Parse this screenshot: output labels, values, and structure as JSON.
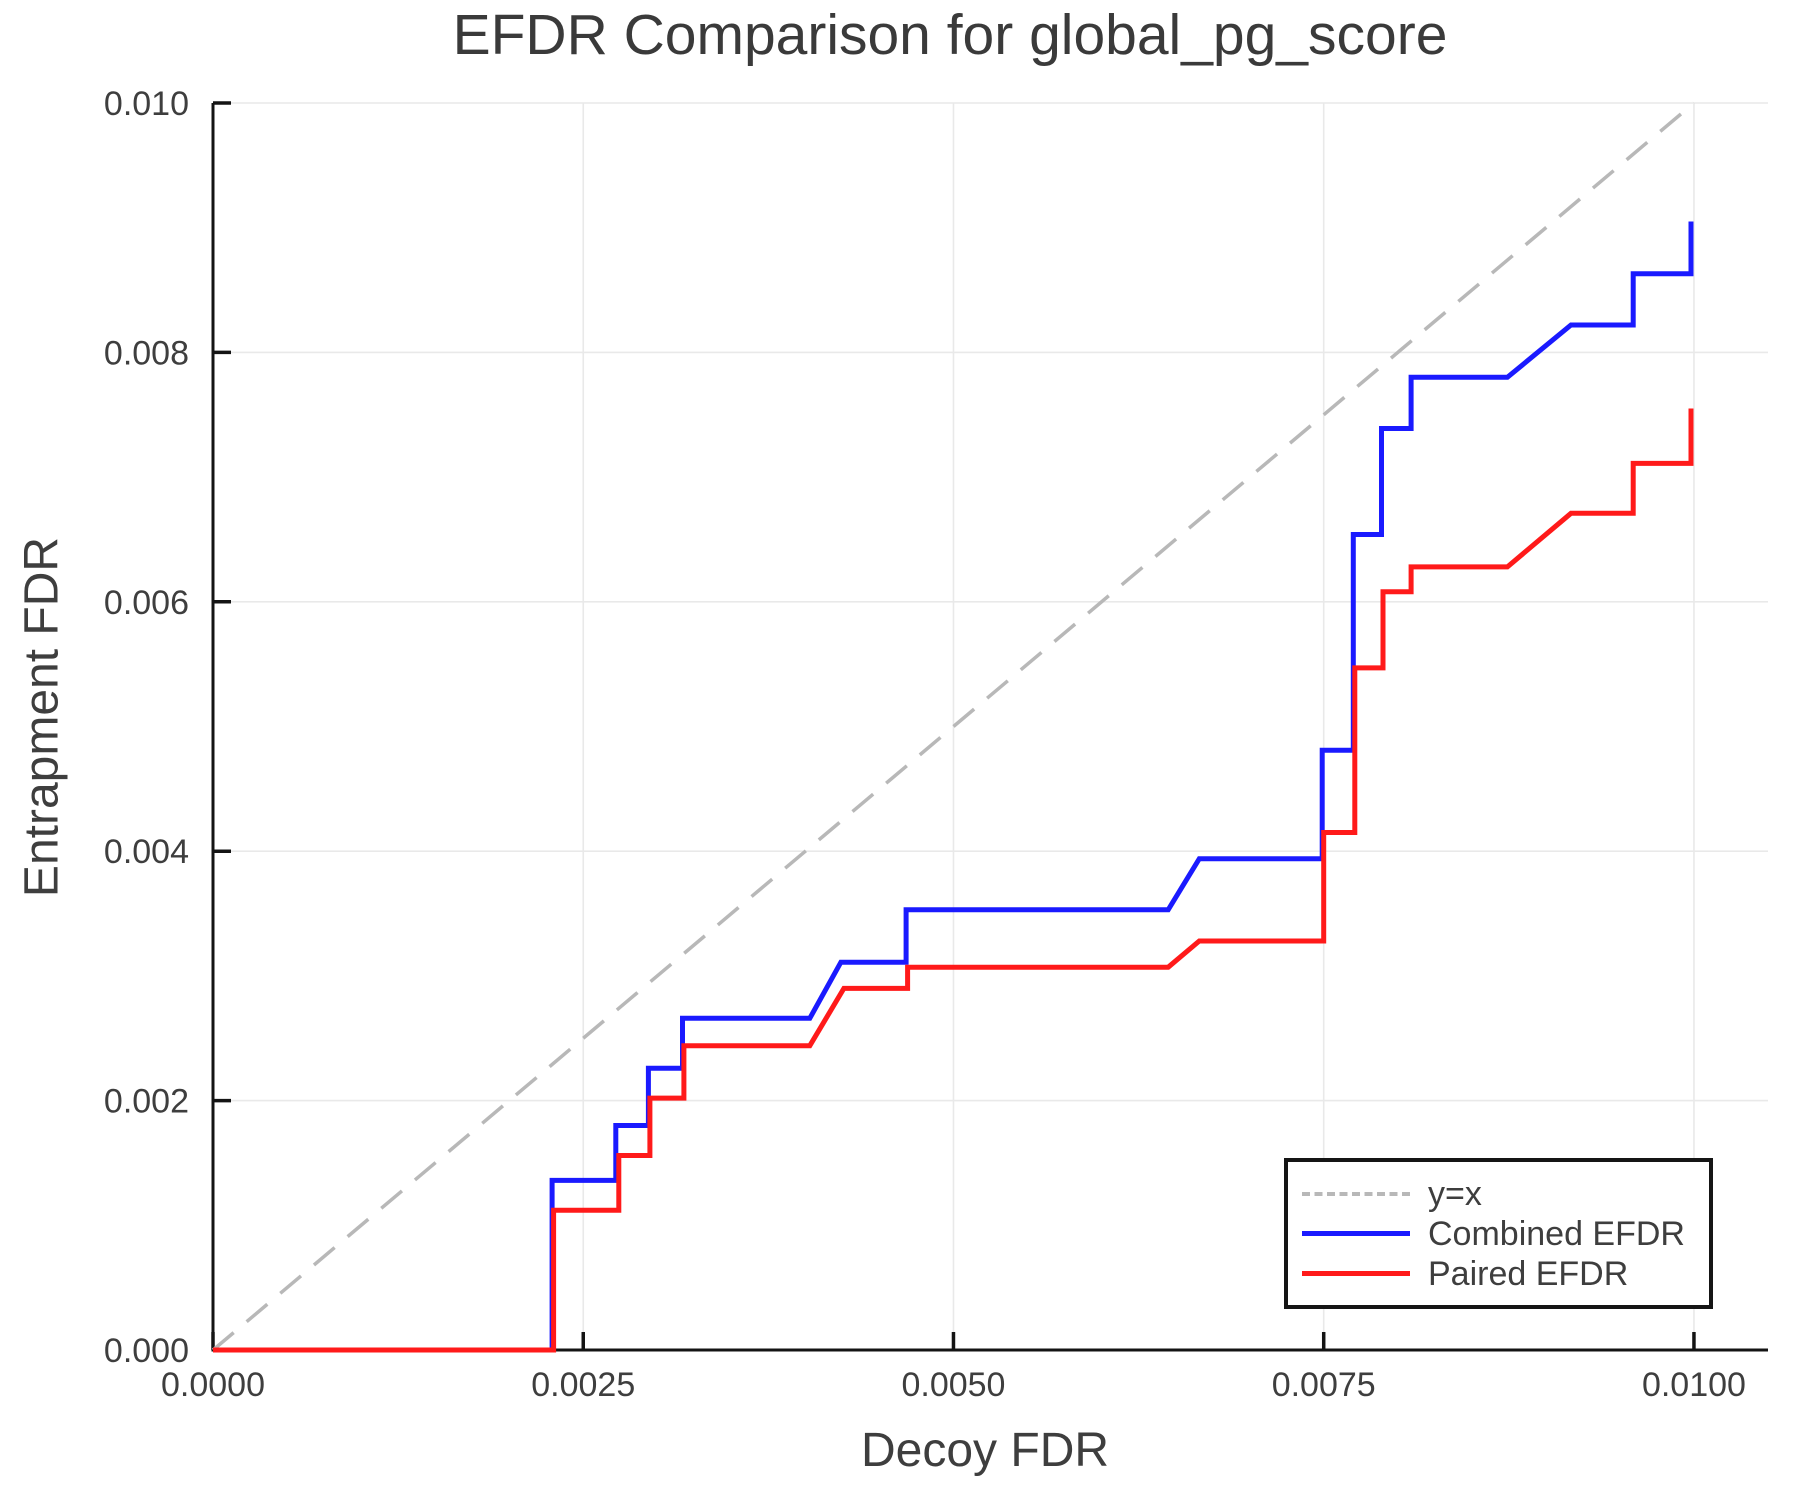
{
  "chart_data": {
    "type": "line",
    "title": "EFDR Comparison for global_pg_score",
    "xlabel": "Decoy FDR",
    "ylabel": "Entrapment FDR",
    "xlim": [
      0,
      0.0105
    ],
    "ylim": [
      0,
      0.01
    ],
    "grid": true,
    "grid_color": "#e9e9e9",
    "spine_color": "#141414",
    "text_color": "#3e3e3e",
    "legend_position": "lower right",
    "x_ticks": {
      "values": [
        0,
        0.0025,
        0.005,
        0.0075,
        0.01
      ],
      "labels": [
        "0.0000",
        "0.0025",
        "0.0050",
        "0.0075",
        "0.0100"
      ]
    },
    "y_ticks": {
      "values": [
        0,
        0.002,
        0.004,
        0.006,
        0.008,
        0.01
      ],
      "labels": [
        "0.000",
        "0.002",
        "0.004",
        "0.006",
        "0.008",
        "0.010"
      ]
    },
    "series": [
      {
        "name": "y=x",
        "color": "#b8b8b8",
        "dash": "27 17",
        "width": 3.5,
        "points": [
          [
            0,
            0
          ],
          [
            0.01,
            0.01
          ]
        ]
      },
      {
        "name": "Combined EFDR",
        "color": "#1a1aff",
        "dash": null,
        "width": 5,
        "points": [
          [
            0.0,
            0.0
          ],
          [
            0.00229,
            0.0
          ],
          [
            0.00229,
            0.00136
          ],
          [
            0.00272,
            0.00136
          ],
          [
            0.00272,
            0.0018
          ],
          [
            0.00294,
            0.0018
          ],
          [
            0.00294,
            0.00226
          ],
          [
            0.00317,
            0.00226
          ],
          [
            0.00317,
            0.00266
          ],
          [
            0.00403,
            0.00266
          ],
          [
            0.00424,
            0.00311
          ],
          [
            0.00468,
            0.00311
          ],
          [
            0.00468,
            0.00353
          ],
          [
            0.00645,
            0.00353
          ],
          [
            0.00666,
            0.00394
          ],
          [
            0.00749,
            0.00394
          ],
          [
            0.00749,
            0.00481
          ],
          [
            0.0077,
            0.00481
          ],
          [
            0.0077,
            0.00654
          ],
          [
            0.00789,
            0.00654
          ],
          [
            0.00789,
            0.00739
          ],
          [
            0.00809,
            0.00739
          ],
          [
            0.00809,
            0.0078
          ],
          [
            0.00874,
            0.0078
          ],
          [
            0.00917,
            0.00822
          ],
          [
            0.00959,
            0.00822
          ],
          [
            0.00959,
            0.00863
          ],
          [
            0.00998,
            0.00863
          ],
          [
            0.00998,
            0.00905
          ]
        ]
      },
      {
        "name": "Paired EFDR",
        "color": "#ff1a1a",
        "dash": null,
        "width": 5,
        "points": [
          [
            0.0,
            0.0
          ],
          [
            0.0023,
            0.0
          ],
          [
            0.0023,
            0.00112
          ],
          [
            0.00274,
            0.00112
          ],
          [
            0.00274,
            0.00156
          ],
          [
            0.00295,
            0.00156
          ],
          [
            0.00295,
            0.00202
          ],
          [
            0.00318,
            0.00202
          ],
          [
            0.00318,
            0.00244
          ],
          [
            0.00403,
            0.00244
          ],
          [
            0.00426,
            0.0029
          ],
          [
            0.00469,
            0.0029
          ],
          [
            0.00469,
            0.00307
          ],
          [
            0.00645,
            0.00307
          ],
          [
            0.00666,
            0.00328
          ],
          [
            0.0075,
            0.00328
          ],
          [
            0.0075,
            0.00415
          ],
          [
            0.00771,
            0.00415
          ],
          [
            0.00771,
            0.00547
          ],
          [
            0.0079,
            0.00547
          ],
          [
            0.0079,
            0.00608
          ],
          [
            0.00809,
            0.00608
          ],
          [
            0.00809,
            0.00628
          ],
          [
            0.00874,
            0.00628
          ],
          [
            0.00917,
            0.00671
          ],
          [
            0.00959,
            0.00671
          ],
          [
            0.00959,
            0.00711
          ],
          [
            0.00998,
            0.00711
          ],
          [
            0.00998,
            0.00755
          ]
        ]
      }
    ]
  }
}
